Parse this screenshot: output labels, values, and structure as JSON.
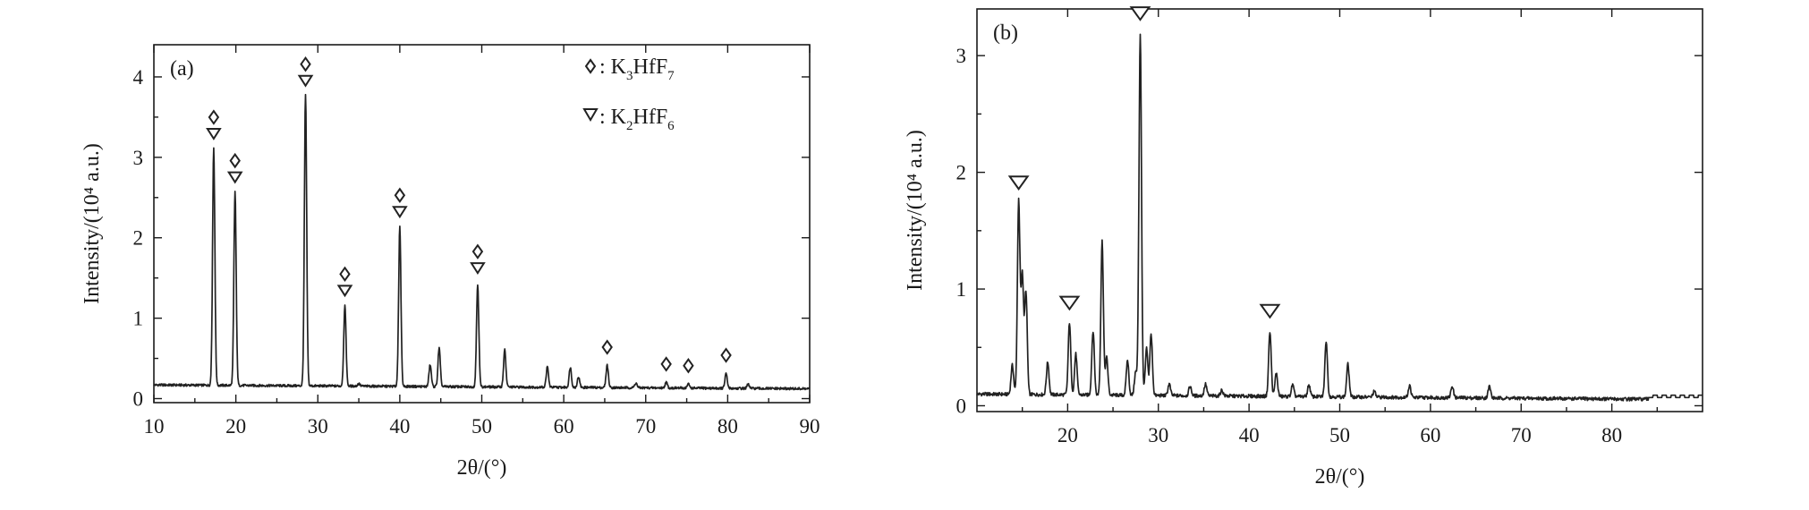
{
  "chart_data": [
    {
      "type": "line",
      "panel_label": "(a)",
      "xlabel": "2θ/(°)",
      "ylabel": "Intensity/(10⁴ a.u.)",
      "xlim": [
        10,
        90
      ],
      "ylim": [
        0,
        4.4
      ],
      "xticks": [
        "10",
        "20",
        "30",
        "40",
        "50",
        "60",
        "70",
        "80",
        "90"
      ],
      "yticks": [
        "0",
        "1",
        "2",
        "3",
        "4"
      ],
      "baseline": 0.17,
      "peaks": [
        {
          "x": 17.3,
          "y": 3.12
        },
        {
          "x": 19.9,
          "y": 2.58
        },
        {
          "x": 28.5,
          "y": 3.78
        },
        {
          "x": 33.3,
          "y": 1.17
        },
        {
          "x": 35.0,
          "y": 0.2
        },
        {
          "x": 40.0,
          "y": 2.15
        },
        {
          "x": 43.7,
          "y": 0.44
        },
        {
          "x": 44.8,
          "y": 0.65
        },
        {
          "x": 49.5,
          "y": 1.45
        },
        {
          "x": 52.8,
          "y": 0.63
        },
        {
          "x": 58.0,
          "y": 0.42
        },
        {
          "x": 60.8,
          "y": 0.42
        },
        {
          "x": 61.8,
          "y": 0.3
        },
        {
          "x": 65.3,
          "y": 0.45
        },
        {
          "x": 68.8,
          "y": 0.23
        },
        {
          "x": 72.5,
          "y": 0.24
        },
        {
          "x": 75.2,
          "y": 0.22
        },
        {
          "x": 79.8,
          "y": 0.35
        },
        {
          "x": 82.5,
          "y": 0.22
        }
      ],
      "markers": [
        {
          "x": 17.3,
          "types": [
            "K3HfF7",
            "K2HfF6"
          ]
        },
        {
          "x": 19.9,
          "types": [
            "K3HfF7",
            "K2HfF6"
          ]
        },
        {
          "x": 28.5,
          "types": [
            "K3HfF7",
            "K2HfF6"
          ]
        },
        {
          "x": 33.3,
          "types": [
            "K3HfF7",
            "K2HfF6"
          ]
        },
        {
          "x": 40.0,
          "types": [
            "K3HfF7",
            "K2HfF6"
          ]
        },
        {
          "x": 49.5,
          "types": [
            "K3HfF7",
            "K2HfF6"
          ]
        },
        {
          "x": 65.3,
          "types": [
            "K3HfF7"
          ]
        },
        {
          "x": 72.5,
          "types": [
            "K3HfF7"
          ]
        },
        {
          "x": 75.2,
          "types": [
            "K3HfF7"
          ]
        },
        {
          "x": 79.8,
          "types": [
            "K3HfF7"
          ]
        }
      ],
      "legend": [
        {
          "symbol": "diamond",
          "text": ": K",
          "sub1": "3",
          "mid": "HfF",
          "sub2": "7"
        },
        {
          "symbol": "triangle",
          "text": ": K",
          "sub1": "2",
          "mid": "HfF",
          "sub2": "6"
        }
      ],
      "legend_position": "top-right"
    },
    {
      "type": "line",
      "panel_label": "(b)",
      "xlabel": "2θ/(°)",
      "ylabel": "Intensity/(10⁴ a.u.)",
      "xlim": [
        10,
        90
      ],
      "ylim": [
        0,
        3.4
      ],
      "xticks": [
        "20",
        "30",
        "40",
        "50",
        "60",
        "70",
        "80"
      ],
      "yticks": [
        "0",
        "1",
        "2",
        "3"
      ],
      "baseline": 0.1,
      "peaks": [
        {
          "x": 13.9,
          "y": 0.35
        },
        {
          "x": 14.6,
          "y": 1.75
        },
        {
          "x": 15.0,
          "y": 1.12
        },
        {
          "x": 15.4,
          "y": 0.98
        },
        {
          "x": 17.8,
          "y": 0.38
        },
        {
          "x": 20.2,
          "y": 0.72
        },
        {
          "x": 20.9,
          "y": 0.45
        },
        {
          "x": 22.8,
          "y": 0.65
        },
        {
          "x": 23.8,
          "y": 1.42
        },
        {
          "x": 24.3,
          "y": 0.42
        },
        {
          "x": 26.6,
          "y": 0.4
        },
        {
          "x": 27.5,
          "y": 0.3
        },
        {
          "x": 28.0,
          "y": 3.2
        },
        {
          "x": 28.7,
          "y": 0.5
        },
        {
          "x": 29.2,
          "y": 0.62
        },
        {
          "x": 31.2,
          "y": 0.2
        },
        {
          "x": 33.5,
          "y": 0.18
        },
        {
          "x": 35.2,
          "y": 0.2
        },
        {
          "x": 37.0,
          "y": 0.15
        },
        {
          "x": 42.3,
          "y": 0.65
        },
        {
          "x": 43.0,
          "y": 0.3
        },
        {
          "x": 44.8,
          "y": 0.2
        },
        {
          "x": 46.6,
          "y": 0.2
        },
        {
          "x": 48.5,
          "y": 0.58
        },
        {
          "x": 50.9,
          "y": 0.38
        },
        {
          "x": 53.8,
          "y": 0.15
        },
        {
          "x": 57.7,
          "y": 0.2
        },
        {
          "x": 62.4,
          "y": 0.2
        },
        {
          "x": 66.5,
          "y": 0.2
        }
      ],
      "markers": [
        {
          "x": 14.6,
          "types": [
            "K2HfF6"
          ]
        },
        {
          "x": 20.2,
          "types": [
            "K2HfF6"
          ]
        },
        {
          "x": 28.0,
          "types": [
            "K2HfF6"
          ]
        },
        {
          "x": 42.3,
          "types": [
            "K2HfF6"
          ]
        }
      ]
    }
  ]
}
